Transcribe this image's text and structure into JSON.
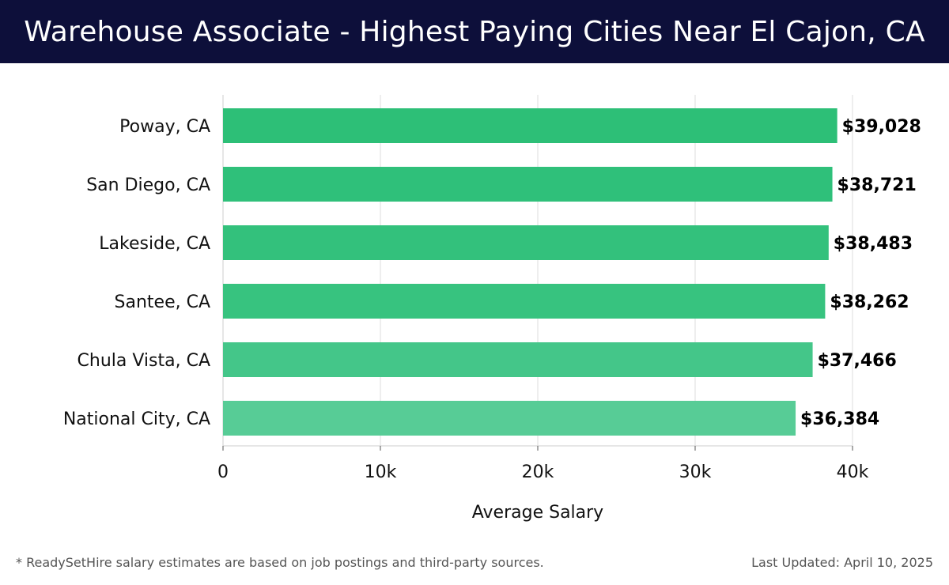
{
  "header": {
    "title": "Warehouse Associate - Highest Paying Cities Near El Cajon, CA"
  },
  "colors": {
    "header_bg": "#0d0f3a",
    "bar_colors": [
      "#2dbf77",
      "#2fc07a",
      "#33c17c",
      "#37c37f",
      "#44c689",
      "#57cc96"
    ],
    "grid": "#dddddd"
  },
  "chart_data": {
    "type": "bar",
    "orientation": "horizontal",
    "categories": [
      "Poway, CA",
      "San Diego, CA",
      "Lakeside, CA",
      "Santee, CA",
      "Chula Vista, CA",
      "National City, CA"
    ],
    "values": [
      39028,
      38721,
      38483,
      38262,
      37466,
      36384
    ],
    "value_labels": [
      "$39,028",
      "$38,721",
      "$38,483",
      "$38,262",
      "$37,466",
      "$36,384"
    ],
    "xlabel": "Average Salary",
    "xlim": [
      0,
      40000
    ],
    "xticks": [
      0,
      10000,
      20000,
      30000,
      40000
    ],
    "xtick_labels": [
      "0",
      "10k",
      "20k",
      "30k",
      "40k"
    ],
    "grid": true
  },
  "footer": {
    "note": "* ReadySetHire salary estimates are based on job postings and third-party sources.",
    "updated": "Last Updated: April 10, 2025"
  }
}
